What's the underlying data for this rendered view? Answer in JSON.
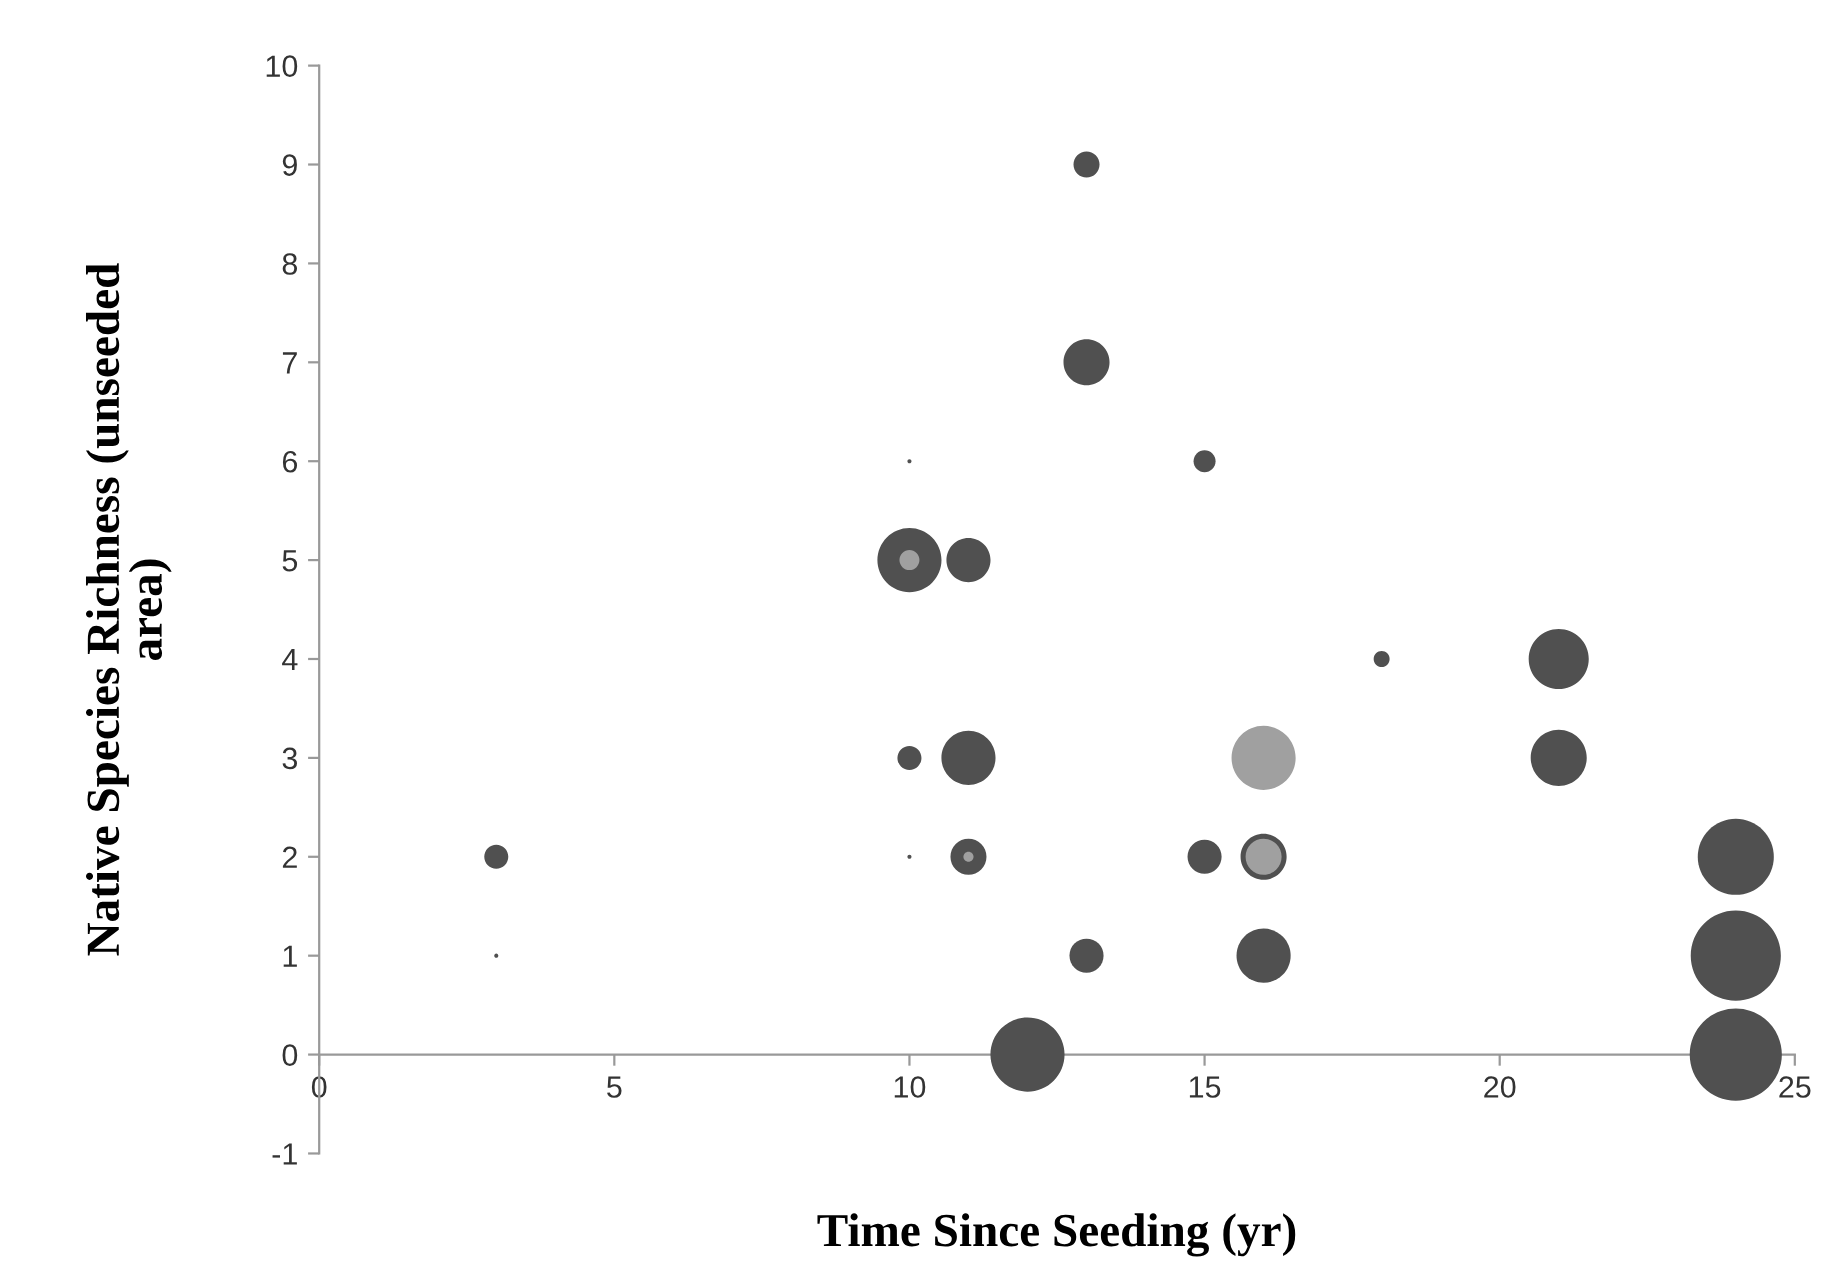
{
  "chart_data": {
    "type": "bubble",
    "xlabel": "Time Since Seeding (yr)",
    "ylabel": "Native Species Richness (unseeded\narea)",
    "xlim": [
      0,
      25
    ],
    "xticks": [
      0,
      5,
      10,
      15,
      20,
      25
    ],
    "ylim": [
      -1,
      10
    ],
    "yticks": [
      -1,
      0,
      1,
      2,
      3,
      4,
      5,
      6,
      7,
      8,
      9,
      10
    ],
    "grid": false,
    "legend": false,
    "series": [
      {
        "color": "#505050",
        "x": [
          3,
          3,
          10,
          10,
          10,
          10,
          11,
          11,
          11,
          12,
          13,
          13,
          13,
          15,
          15,
          16,
          16,
          18,
          21,
          21,
          24,
          24,
          24
        ],
        "values": [
          1,
          2,
          6,
          5,
          3,
          2,
          5,
          3,
          2,
          0,
          9,
          7,
          1,
          6,
          2,
          2,
          1,
          4,
          4,
          3,
          2,
          1,
          0
        ],
        "sizes": [
          0.002,
          0.068,
          0.002,
          0.484,
          0.068,
          0.002,
          0.229,
          0.345,
          0.153,
          0.647,
          0.08,
          0.25,
          0.137,
          0.057,
          0.137,
          0.25,
          0.345,
          0.03,
          0.425,
          0.37,
          0.682,
          0.957,
          1
        ]
      },
      {
        "color": "#a0a0a0",
        "x": [
          10,
          11,
          16,
          16
        ],
        "values": [
          5,
          2,
          3,
          2
        ],
        "sizes": [
          0.047,
          0.012,
          0.484,
          0.153
        ]
      }
    ]
  }
}
